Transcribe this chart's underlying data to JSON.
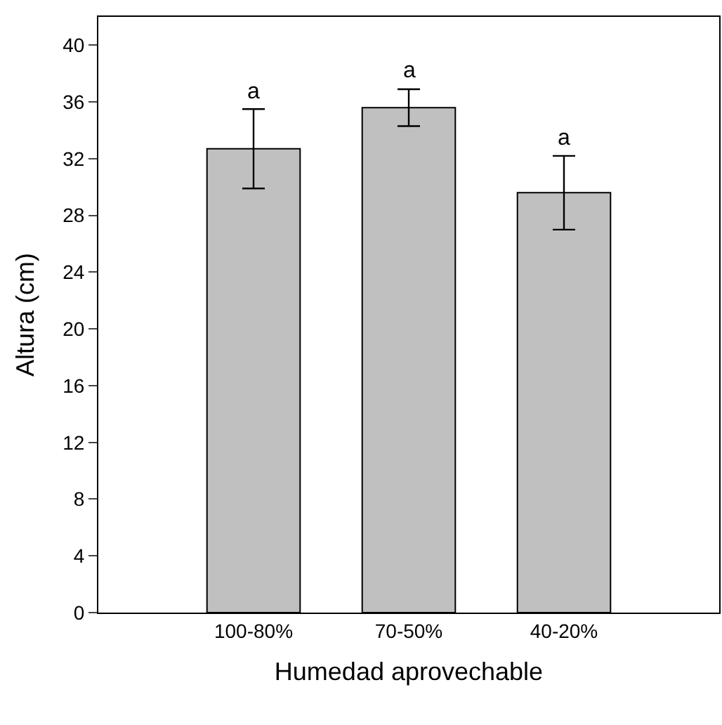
{
  "chart_data": {
    "type": "bar",
    "xlabel": "Humedad aprovechable",
    "ylabel": "Altura (cm)",
    "categories": [
      "100-80%",
      "70-50%",
      "40-20%"
    ],
    "values": [
      32.7,
      35.6,
      29.6
    ],
    "errors": [
      [
        29.9,
        35.5
      ],
      [
        34.3,
        36.9
      ],
      [
        27.0,
        32.2
      ]
    ],
    "color": "#c0c0c0",
    "ylim": [
      0,
      42
    ],
    "yticks": [
      0,
      4,
      8,
      12,
      16,
      20,
      24,
      28,
      32,
      36,
      40
    ],
    "annotations": [
      {
        "text": "a",
        "x": "100-80%",
        "y": 35.5
      },
      {
        "text": "a",
        "x": "70-50%",
        "y": 36.9
      },
      {
        "text": "a",
        "x": "40-20%",
        "y": 32.2
      }
    ],
    "legend": false
  }
}
